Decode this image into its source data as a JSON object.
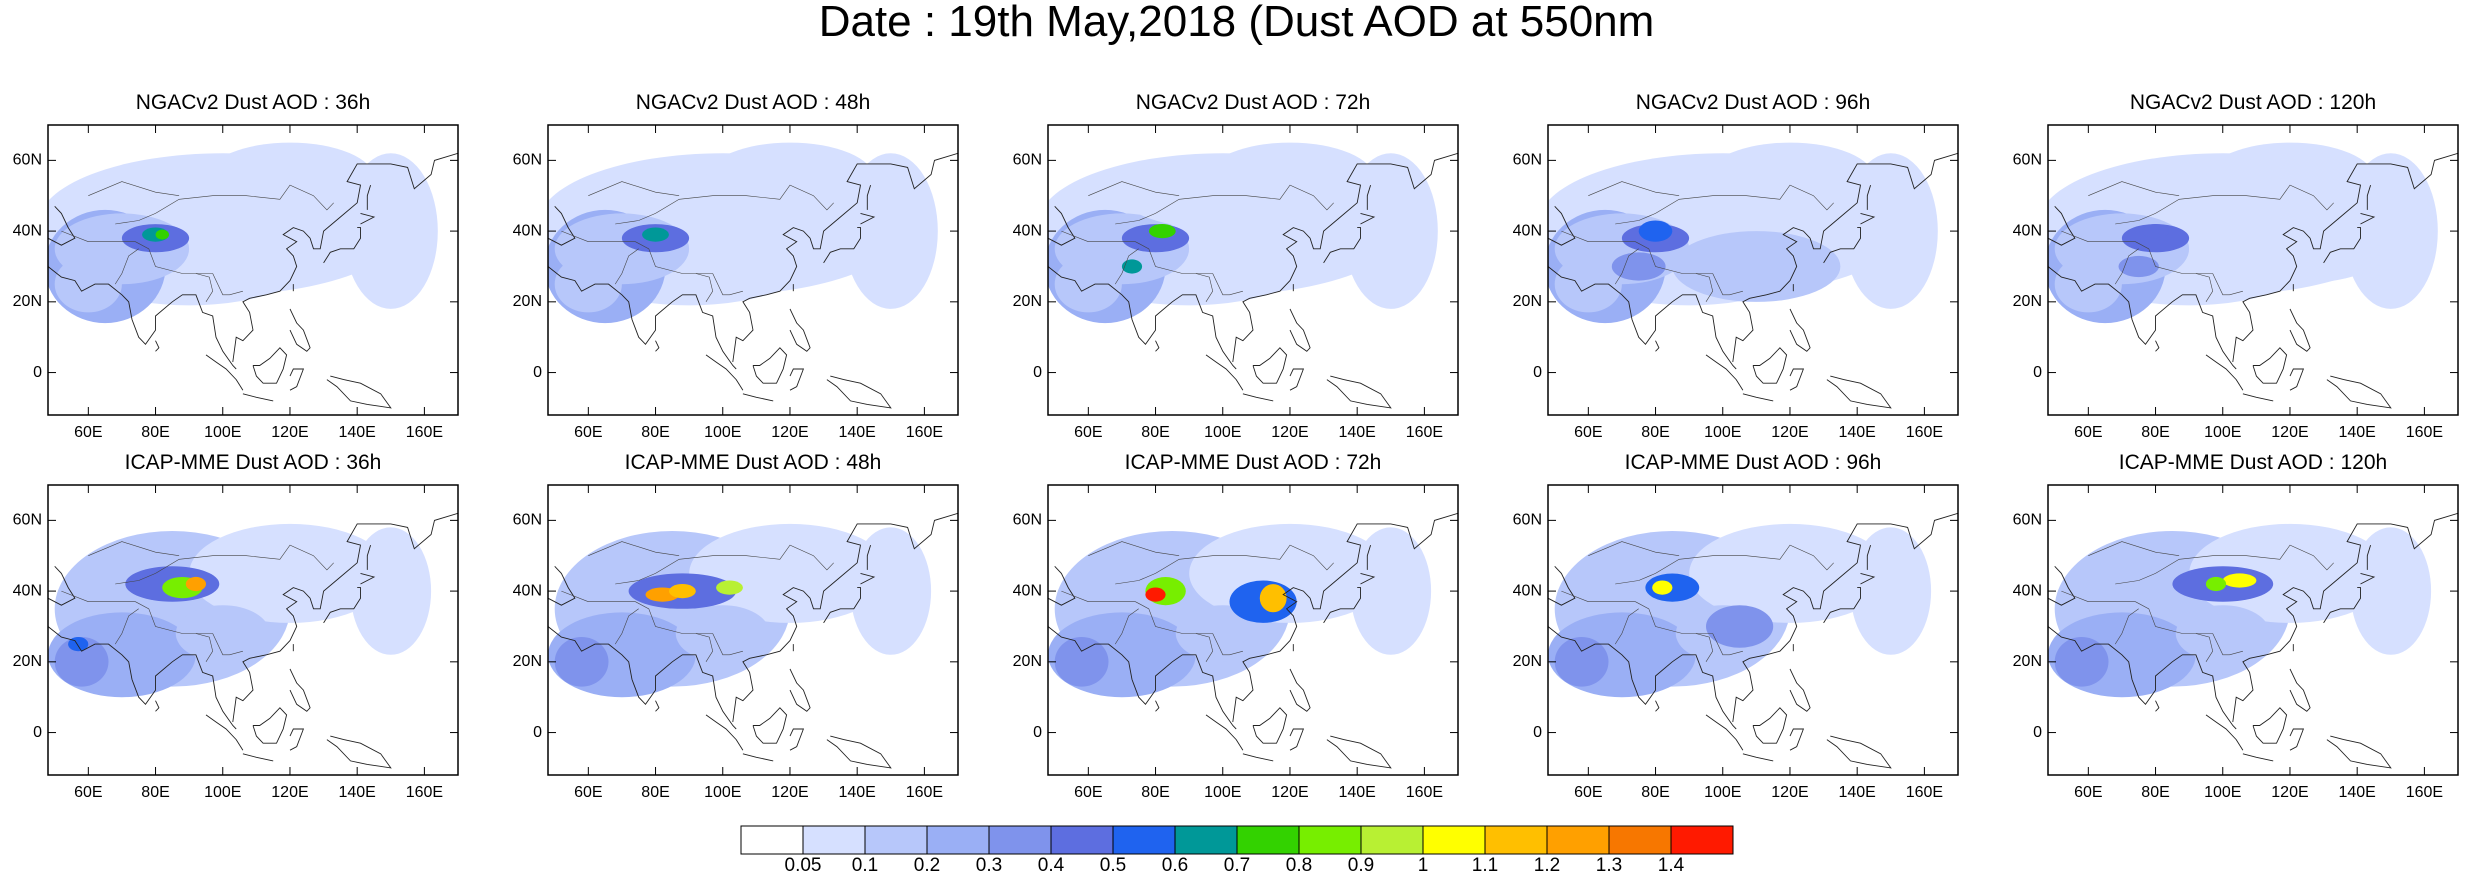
{
  "title": "Date : 19th May,2018 (Dust AOD at 550nm",
  "panels": [
    {
      "title": "NGACv2 Dust AOD : 36h"
    },
    {
      "title": "NGACv2 Dust AOD : 48h"
    },
    {
      "title": "NGACv2 Dust AOD : 72h"
    },
    {
      "title": "NGACv2 Dust AOD : 96h"
    },
    {
      "title": "NGACv2 Dust AOD : 120h"
    },
    {
      "title": "ICAP-MME Dust AOD : 36h"
    },
    {
      "title": "ICAP-MME Dust AOD : 48h"
    },
    {
      "title": "ICAP-MME Dust AOD : 72h"
    },
    {
      "title": "ICAP-MME Dust AOD : 96h"
    },
    {
      "title": "ICAP-MME Dust AOD : 120h"
    }
  ],
  "map": {
    "lon_range": [
      48,
      170
    ],
    "lat_range": [
      -12,
      70
    ],
    "lat_ticks": [
      "0",
      "20N",
      "40N",
      "60N"
    ],
    "lon_ticks": [
      "60E",
      "80E",
      "100E",
      "120E",
      "140E",
      "160E"
    ]
  },
  "colorbar": {
    "labels": [
      "0.05",
      "0.1",
      "0.2",
      "0.3",
      "0.4",
      "0.5",
      "0.6",
      "0.7",
      "0.8",
      "0.9",
      "1",
      "1.1",
      "1.2",
      "1.3",
      "1.4"
    ],
    "colors": [
      "#ffffff",
      "#d6e0ff",
      "#b7c7fa",
      "#9aaff5",
      "#7f93ec",
      "#5d6ee0",
      "#1f63ef",
      "#009898",
      "#33d200",
      "#77ee00",
      "#b8f033",
      "#ffff00",
      "#ffbf00",
      "#ffa000",
      "#f77700",
      "#ff1a00"
    ]
  }
}
